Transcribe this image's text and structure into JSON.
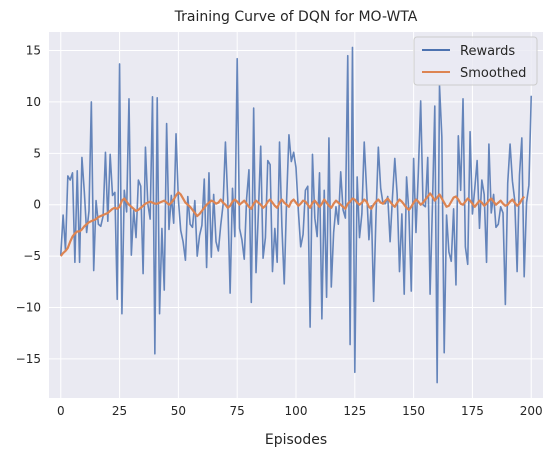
{
  "chart_data": {
    "type": "line",
    "title": "Training Curve of DQN for MO-WTA",
    "xlabel": "Episodes",
    "ylabel": "",
    "xlim": [
      -5,
      205
    ],
    "ylim": [
      -18.8,
      16.8
    ],
    "x_ticks": [
      0,
      25,
      50,
      75,
      100,
      125,
      150,
      175,
      200
    ],
    "y_ticks": [
      -15,
      -10,
      -5,
      0,
      5,
      10,
      15
    ],
    "grid": true,
    "legend_position": "top-right",
    "background_color": "#eaeaf2",
    "series": [
      {
        "name": "Rewards",
        "color": "#4c72b0",
        "values": [
          -4.9,
          -1,
          -4.4,
          2.8,
          2.4,
          3.1,
          -5.6,
          3.3,
          -5.6,
          4.6,
          1.3,
          -2.7,
          -0.6,
          10,
          -6.4,
          0.4,
          -1.9,
          -2.1,
          -1.1,
          5.1,
          -1.6,
          4.9,
          0.9,
          1.2,
          -9.2,
          13.7,
          -10.6,
          1.4,
          -0.7,
          10.3,
          -4.9,
          -0.5,
          -3.2,
          2.4,
          1.8,
          -6.7,
          5.6,
          0.1,
          -1.4,
          10.5,
          -14.5,
          10.4,
          -10.6,
          -2.3,
          -8.3,
          7.9,
          -2.4,
          0.9,
          -1.8,
          6.9,
          0.5,
          -2.5,
          -3.6,
          -5.4,
          0.8,
          -1.9,
          -2.2,
          0.4,
          -5,
          -3,
          -2,
          2.5,
          -6.1,
          3.1,
          -5.1,
          1,
          -3.6,
          -4.5,
          -2,
          0,
          6.1,
          0.4,
          -8.6,
          1.6,
          -3.1,
          14.2,
          -2.3,
          -3.4,
          -5.3,
          0.6,
          3.4,
          -9.5,
          9.4,
          -6.6,
          -0.8,
          5.7,
          -5.2,
          -3.2,
          4.3,
          3.9,
          -6.5,
          -2.3,
          -5.6,
          6.1,
          -2.1,
          -7.7,
          0.4,
          6.8,
          4.2,
          5.1,
          3.6,
          -0.6,
          -4.1,
          -2.9,
          1.4,
          1.8,
          -11.9,
          4.9,
          -1.3,
          -3.1,
          3.1,
          -11.1,
          1.4,
          -9,
          6.5,
          -8,
          -2.7,
          -0.2,
          -1.9,
          3.2,
          -0.5,
          -1.3,
          14.5,
          -13.6,
          15.3,
          -16.3,
          2.7,
          -3.2,
          -0.9,
          6.1,
          1.5,
          -3.4,
          -0.1,
          -9.4,
          -1.1,
          5.6,
          1.6,
          0.1,
          0.1,
          0.8,
          -3.6,
          0.7,
          4.5,
          1,
          -6.5,
          -0.9,
          -8.7,
          2.7,
          -0.8,
          -8.4,
          4.5,
          -2.7,
          3.1,
          10.1,
          0,
          -0.2,
          4.6,
          -8.7,
          -0.1,
          9.6,
          -17.3,
          11.6,
          6.6,
          -14.4,
          -1,
          -4.6,
          -5.5,
          -0.4,
          -7.8,
          6.7,
          1.4,
          10.3,
          -4.1,
          -5.8,
          7.1,
          -0.9,
          1.6,
          4.3,
          -2.3,
          2.4,
          1,
          -5.6,
          5.9,
          -0.8,
          1,
          -2.2,
          -1.9,
          -0.2,
          -0.8,
          -9.7,
          2.1,
          5.9,
          2.3,
          0.4,
          -6.5,
          2.9,
          6.5,
          -7,
          0.2,
          1.9,
          10.6
        ]
      },
      {
        "name": "Smoothed",
        "color": "#dd8452",
        "values": [
          -5,
          -4.7,
          -4.5,
          -4.2,
          -3.6,
          -3.1,
          -2.8,
          -2.6,
          -2.6,
          -2.4,
          -2.1,
          -1.9,
          -1.7,
          -1.6,
          -1.5,
          -1.4,
          -1.2,
          -1.1,
          -1,
          -0.9,
          -0.8,
          -0.6,
          -0.4,
          -0.3,
          -0.4,
          -0.2,
          0.4,
          0.6,
          0.3,
          0,
          -0.2,
          -0.4,
          -0.6,
          -0.5,
          -0.3,
          -0.1,
          0.1,
          0.2,
          0.3,
          0.2,
          0.1,
          0.1,
          0.2,
          0.3,
          0.4,
          0.2,
          0,
          0.2,
          0.5,
          0.9,
          1.2,
          1,
          0.6,
          0.2,
          0,
          -0.2,
          -0.5,
          -0.8,
          -1.1,
          -0.9,
          -0.6,
          -0.3,
          0,
          0.2,
          0.4,
          0.3,
          0.1,
          0.2,
          0.5,
          0.2,
          0,
          -0.3,
          -0.1,
          0.3,
          0.5,
          0.3,
          0,
          0.2,
          0.4,
          0.1,
          -0.2,
          -0.4,
          0.1,
          0.4,
          0.2,
          0,
          -0.3,
          -0.1,
          0.3,
          0.5,
          0.2,
          -0.1,
          -0.3,
          0.2,
          0.5,
          0.2,
          0,
          -0.2,
          0.3,
          0.5,
          0.2,
          -0.1,
          0.1,
          0.4,
          0.3,
          0,
          -0.3,
          0.2,
          0.4,
          0.1,
          -0.2,
          0.1,
          0.5,
          0.2,
          -0.1,
          -0.3,
          0.1,
          0.4,
          0.2,
          0,
          -0.2,
          -0.4,
          0.1,
          0.3,
          0.6,
          0.5,
          0.2,
          0,
          0.2,
          0.5,
          0.3,
          -0.2,
          -0.4,
          0,
          0.3,
          0.5,
          0.2,
          0.1,
          0.4,
          0.6,
          0.3,
          0,
          -0.2,
          0.2,
          0.5,
          0.3,
          0,
          -0.3,
          -0.5,
          -0.2,
          0.2,
          0.5,
          0.3,
          0,
          0.2,
          0.5,
          0.8,
          1.1,
          0.8,
          0.4,
          0.7,
          1,
          0.6,
          0.2,
          -0.2,
          -0.1,
          0.3,
          0.7,
          0.8,
          0.5,
          0.1,
          0,
          0.3,
          0.6,
          0.4,
          0.1,
          -0.2,
          0.1,
          0.4,
          0.2,
          -0.1,
          0.1,
          0.4,
          0.6,
          0.3,
          0,
          0.2,
          0.4,
          0.1,
          -0.1,
          0,
          0.3,
          0.5,
          0.2,
          -0.1,
          0.1,
          0.5,
          0.8
        ]
      }
    ]
  }
}
